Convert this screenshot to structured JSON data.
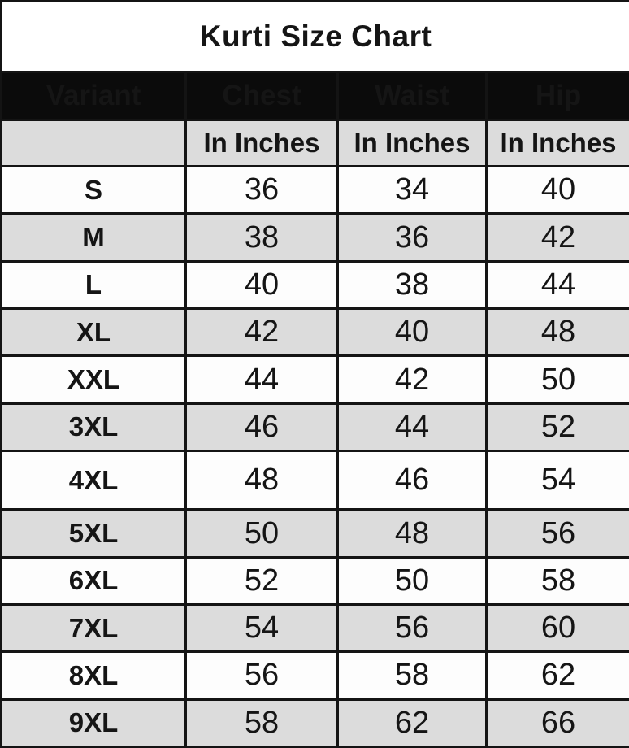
{
  "title": "Kurti Size Chart",
  "columns": [
    "Variant",
    "Chest",
    "Waist",
    "Hip"
  ],
  "unit_row": {
    "chest": "In Inches",
    "waist": "In Inches",
    "hip": "In Inches"
  },
  "rows": [
    {
      "variant": "S",
      "chest": "36",
      "waist": "34",
      "hip": "40"
    },
    {
      "variant": "M",
      "chest": "38",
      "waist": "36",
      "hip": "42"
    },
    {
      "variant": "L",
      "chest": "40",
      "waist": "38",
      "hip": "44"
    },
    {
      "variant": "XL",
      "chest": "42",
      "waist": "40",
      "hip": "48"
    },
    {
      "variant": "XXL",
      "chest": "44",
      "waist": "42",
      "hip": "50"
    },
    {
      "variant": "3XL",
      "chest": "46",
      "waist": "44",
      "hip": "52"
    },
    {
      "variant": "4XL",
      "chest": "48",
      "waist": "46",
      "hip": "54"
    },
    {
      "variant": "5XL",
      "chest": "50",
      "waist": "48",
      "hip": "56"
    },
    {
      "variant": "6XL",
      "chest": "52",
      "waist": "50",
      "hip": "58"
    },
    {
      "variant": "7XL",
      "chest": "54",
      "waist": "56",
      "hip": "60"
    },
    {
      "variant": "8XL",
      "chest": "56",
      "waist": "58",
      "hip": "62"
    },
    {
      "variant": "9XL",
      "chest": "58",
      "waist": "62",
      "hip": "66"
    }
  ],
  "colors": {
    "header_bg": "#0b0b0b",
    "header_text": "#ffffff",
    "alt_row_bg": "#dcdcdc",
    "row_bg": "#fdfdfd",
    "border": "#141414",
    "text": "#151515"
  },
  "chart_data": {
    "type": "table",
    "title": "Kurti Size Chart",
    "unit": "inches",
    "columns": [
      "Variant",
      "Chest (In Inches)",
      "Waist (In Inches)",
      "Hip (In Inches)"
    ],
    "rows": [
      [
        "S",
        36,
        34,
        40
      ],
      [
        "M",
        38,
        36,
        42
      ],
      [
        "L",
        40,
        38,
        44
      ],
      [
        "XL",
        42,
        40,
        48
      ],
      [
        "XXL",
        44,
        42,
        50
      ],
      [
        "3XL",
        46,
        44,
        52
      ],
      [
        "4XL",
        48,
        46,
        54
      ],
      [
        "5XL",
        50,
        48,
        56
      ],
      [
        "6XL",
        52,
        50,
        58
      ],
      [
        "7XL",
        54,
        56,
        60
      ],
      [
        "8XL",
        56,
        58,
        62
      ],
      [
        "9XL",
        58,
        62,
        66
      ]
    ]
  }
}
